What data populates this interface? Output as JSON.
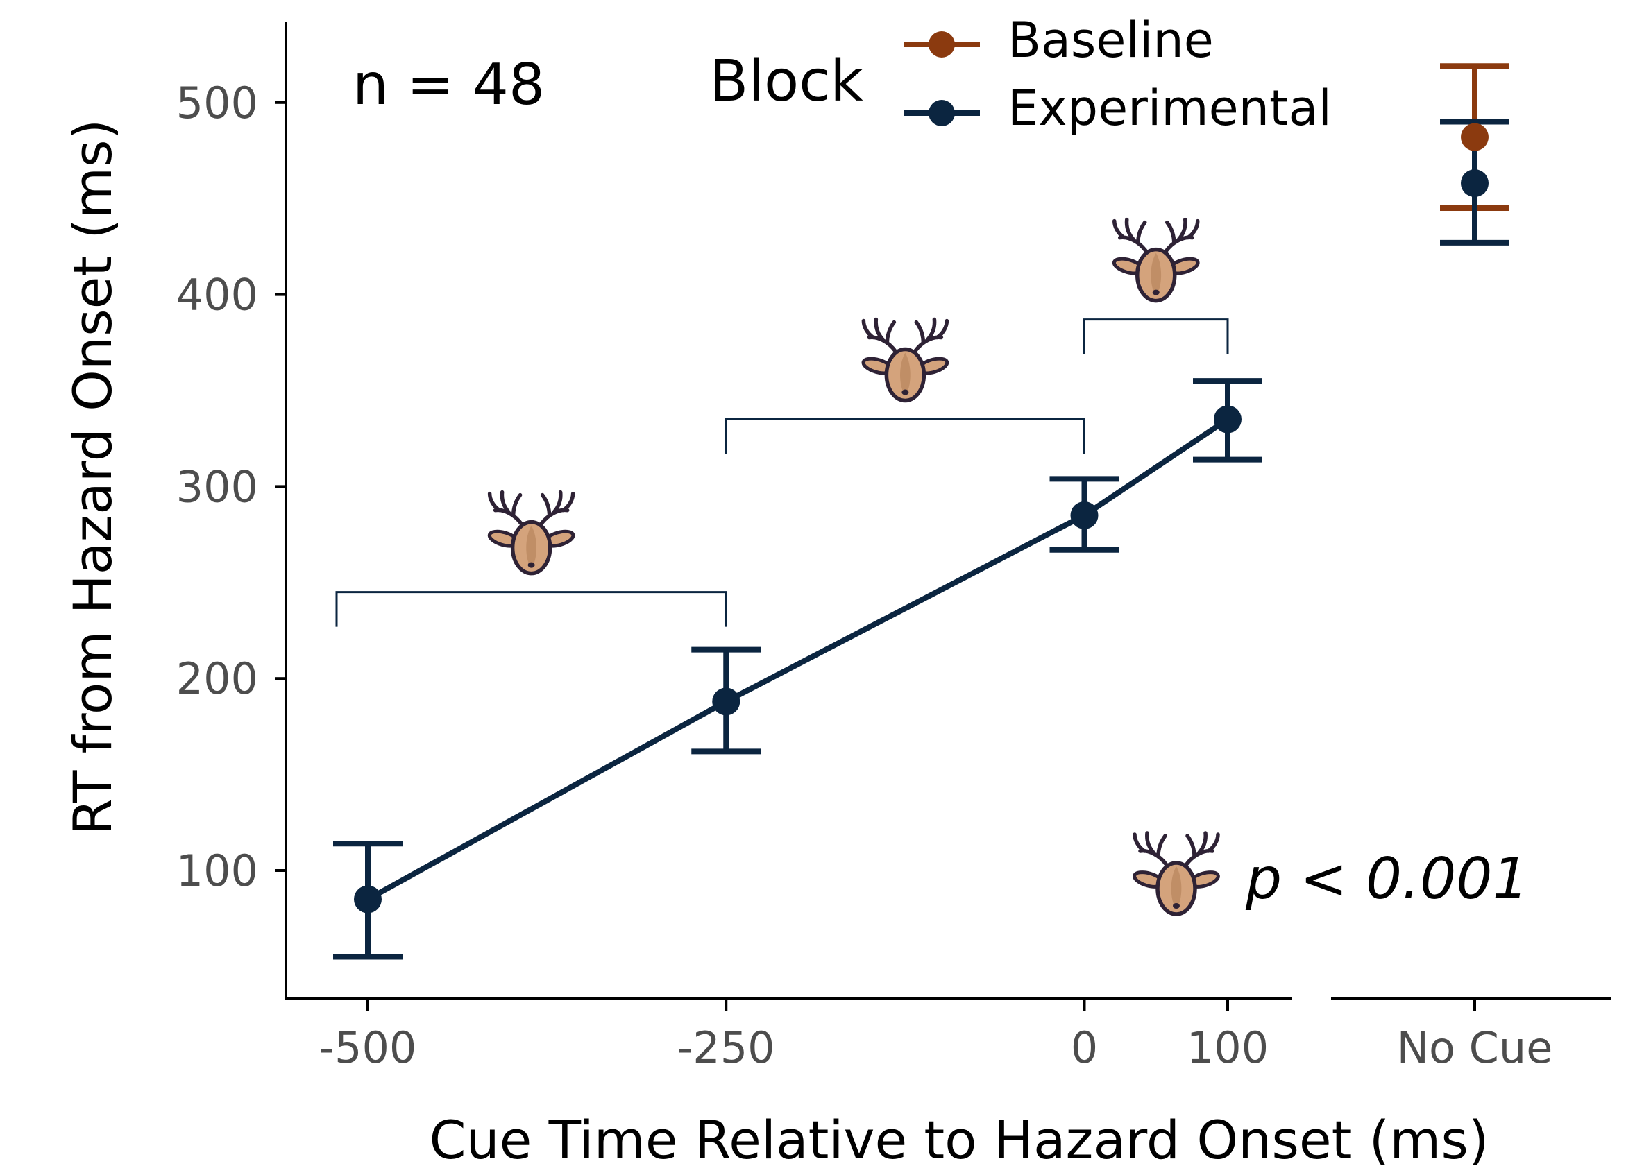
{
  "chart_data": {
    "type": "line",
    "annotation": "n = 48",
    "xlabel": "Cue Time Relative to Hazard Onset (ms)",
    "ylabel": "RT from Hazard Onset (ms)",
    "x_ticks": [
      "-500",
      "-250",
      "0",
      "100"
    ],
    "x_ticks_extra": [
      "No Cue"
    ],
    "y_ticks": [
      "100",
      "200",
      "300",
      "400",
      "500"
    ],
    "ylim": [
      35,
      545
    ],
    "xlim": [
      -555,
      145
    ],
    "legend": {
      "title": "Block",
      "position": "top",
      "entries": [
        "Baseline",
        "Experimental"
      ]
    },
    "colors": {
      "Baseline": "#8b3a0f",
      "Experimental": "#0b2540",
      "deer_fill": "#d4a37c",
      "deer_outline": "#2e2235"
    },
    "series": [
      {
        "name": "Experimental",
        "x": [
          -500,
          -250,
          0,
          100
        ],
        "y": [
          85,
          188,
          285,
          335
        ],
        "lower": [
          55,
          162,
          267,
          314
        ],
        "upper": [
          114,
          215,
          304,
          355
        ]
      }
    ],
    "no_cue": [
      {
        "name": "Baseline",
        "y": 482,
        "lower": 445,
        "upper": 519
      },
      {
        "name": "Experimental",
        "y": 458,
        "lower": 427,
        "upper": 490
      }
    ],
    "comparisons": [
      {
        "from": -500,
        "to": -250,
        "y": 245,
        "marker": "deer-icon"
      },
      {
        "from": -250,
        "to": 0,
        "y": 335,
        "marker": "deer-icon"
      },
      {
        "from": 0,
        "to": 100,
        "y": 387,
        "marker": "deer-icon"
      }
    ],
    "significance": {
      "marker": "deer-icon",
      "text": "p < 0.001"
    }
  }
}
